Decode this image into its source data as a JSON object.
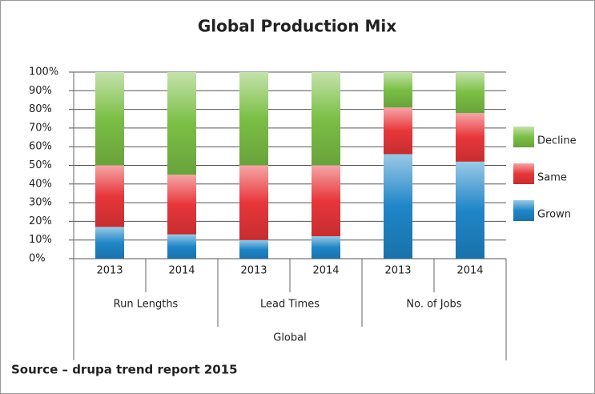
{
  "chart_data": {
    "type": "stacked-bar",
    "title": "Global Production Mix",
    "categories": [
      "2013",
      "2014",
      "2013",
      "2014",
      "2013",
      "2014"
    ],
    "groups": [
      "Run Lengths",
      "Lead Times",
      "No. of Jobs"
    ],
    "supergroup": "Global",
    "series": [
      {
        "name": "Grown",
        "color": "#1f86c8",
        "values": [
          17,
          13,
          10,
          12,
          56,
          52
        ]
      },
      {
        "name": "Same",
        "color": "#e8363a",
        "values": [
          33,
          32,
          40,
          38,
          25,
          26
        ]
      },
      {
        "name": "Decline",
        "color": "#7bbf45",
        "values": [
          50,
          55,
          50,
          50,
          19,
          22
        ]
      }
    ],
    "ylim": [
      0,
      100
    ],
    "yticks": [
      {
        "value": 0,
        "label": "0%"
      },
      {
        "value": 10,
        "label": "10%"
      },
      {
        "value": 20,
        "label": "20%"
      },
      {
        "value": 30,
        "label": "30%"
      },
      {
        "value": 40,
        "label": "40%"
      },
      {
        "value": 50,
        "label": "50%"
      },
      {
        "value": 60,
        "label": "60%"
      },
      {
        "value": 70,
        "label": "70%"
      },
      {
        "value": 80,
        "label": "80%"
      },
      {
        "value": 90,
        "label": "90%"
      },
      {
        "value": 100,
        "label": "100%"
      }
    ],
    "grid": true,
    "legend": "right",
    "source": "Source – drupa trend report 2015"
  }
}
